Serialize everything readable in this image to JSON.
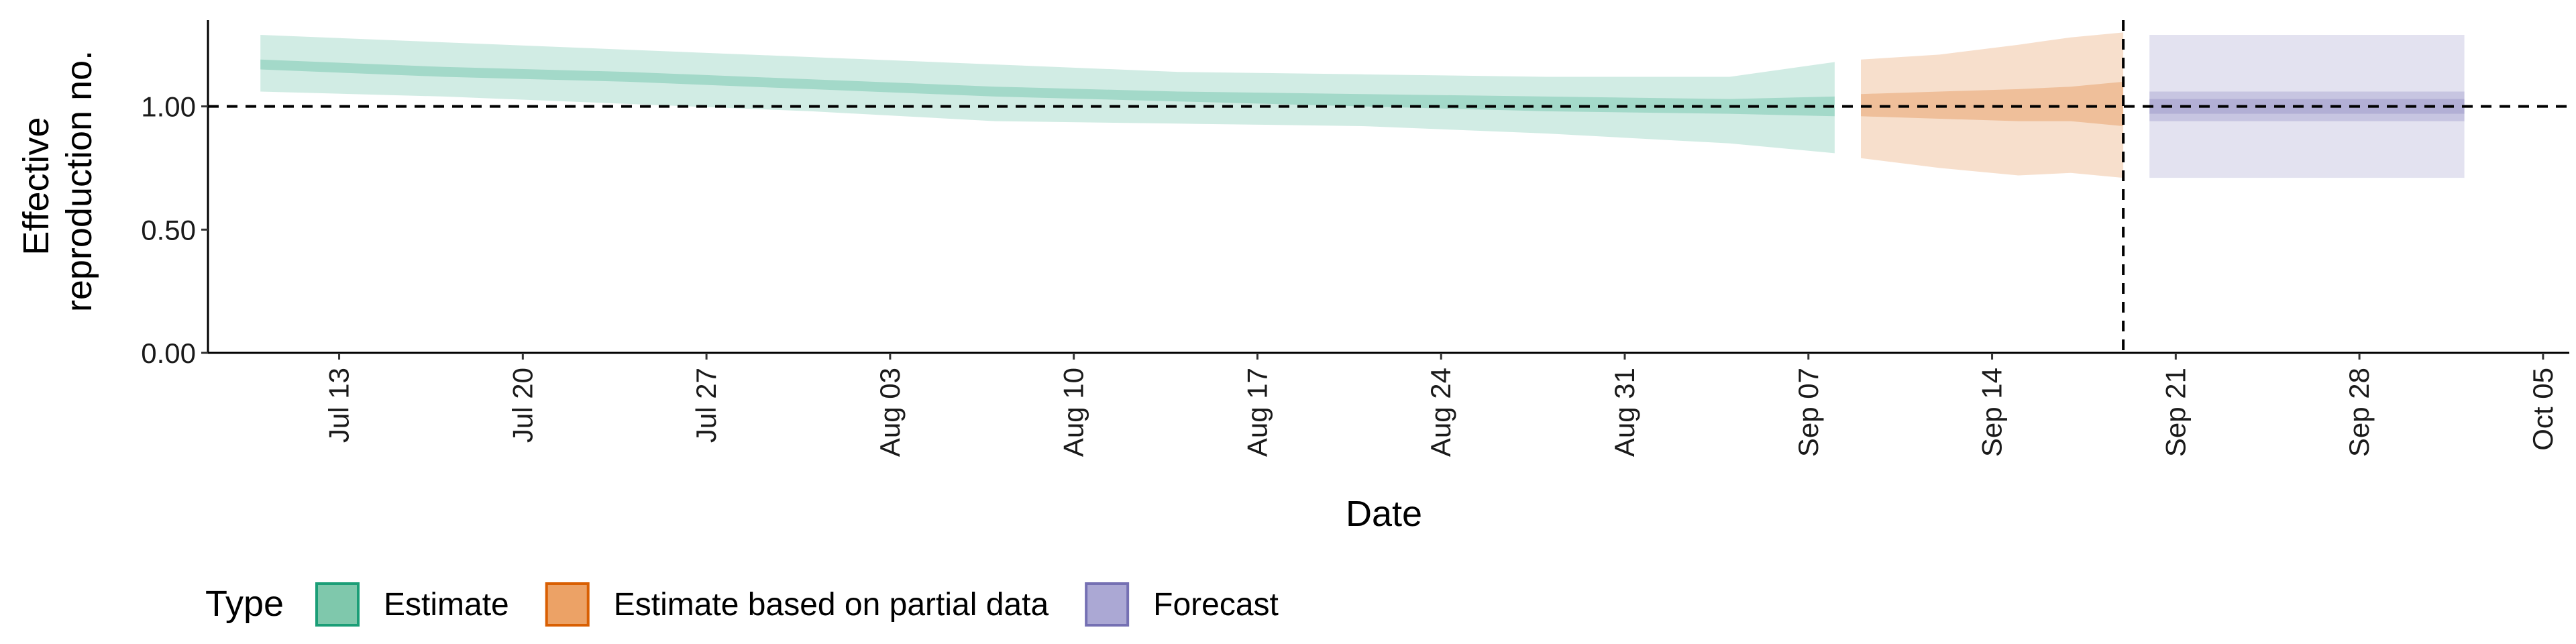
{
  "chart_data": {
    "type": "area",
    "title": "",
    "xlabel": "Date",
    "ylabel_lines": [
      "Effective",
      "reproduction no."
    ],
    "ylim": [
      0,
      1.35
    ],
    "xlim": [
      "2020-07-08",
      "2020-10-06"
    ],
    "y_ticks": [
      0.0,
      0.5,
      1.0
    ],
    "y_tick_labels": [
      "0.00",
      "0.50",
      "1.00"
    ],
    "x_ticks": [
      "2020-07-13",
      "2020-07-20",
      "2020-07-27",
      "2020-08-03",
      "2020-08-10",
      "2020-08-17",
      "2020-08-24",
      "2020-08-31",
      "2020-09-07",
      "2020-09-14",
      "2020-09-21",
      "2020-09-28",
      "2020-10-05"
    ],
    "x_tick_labels": [
      "Jul 13",
      "Jul 20",
      "Jul 27",
      "Aug 03",
      "Aug 10",
      "Aug 17",
      "Aug 24",
      "Aug 31",
      "Sep 07",
      "Sep 14",
      "Sep 21",
      "Sep 28",
      "Oct 05"
    ],
    "reference_hline": 1.0,
    "reference_vline": "2020-09-19",
    "grid": false,
    "legend": {
      "title": "Type",
      "position": "bottom-left",
      "entries": [
        {
          "label": "Estimate",
          "fill": "#7fc8ac",
          "stroke": "#1b9e77"
        },
        {
          "label": "Estimate based on partial data",
          "fill": "#eca266",
          "stroke": "#d95f02"
        },
        {
          "label": "Forecast",
          "fill": "#aba8d4",
          "stroke": "#7570b3"
        }
      ]
    },
    "series": [
      {
        "name": "Estimate",
        "color": "#1b9e77",
        "x": [
          "2020-07-10",
          "2020-07-17",
          "2020-07-24",
          "2020-07-31",
          "2020-08-07",
          "2020-08-14",
          "2020-08-21",
          "2020-08-28",
          "2020-09-04",
          "2020-09-08"
        ],
        "median": [
          1.17,
          1.14,
          1.12,
          1.09,
          1.06,
          1.04,
          1.03,
          1.01,
          1.0,
          1.0
        ],
        "lower_50": [
          1.15,
          1.12,
          1.1,
          1.07,
          1.04,
          1.02,
          1.0,
          0.98,
          0.97,
          0.96
        ],
        "upper_50": [
          1.19,
          1.16,
          1.14,
          1.11,
          1.08,
          1.06,
          1.05,
          1.04,
          1.03,
          1.04
        ],
        "lower_90": [
          1.06,
          1.04,
          1.01,
          0.98,
          0.94,
          0.93,
          0.92,
          0.89,
          0.85,
          0.81
        ],
        "upper_90": [
          1.29,
          1.26,
          1.23,
          1.2,
          1.17,
          1.14,
          1.13,
          1.12,
          1.12,
          1.18
        ]
      },
      {
        "name": "Estimate based on partial data",
        "color": "#d95f02",
        "x": [
          "2020-09-09",
          "2020-09-12",
          "2020-09-15",
          "2020-09-17",
          "2020-09-19"
        ],
        "median": [
          1.0,
          1.0,
          1.0,
          1.0,
          1.01
        ],
        "lower_50": [
          0.96,
          0.95,
          0.94,
          0.94,
          0.92
        ],
        "upper_50": [
          1.05,
          1.06,
          1.07,
          1.08,
          1.1
        ],
        "lower_90": [
          0.79,
          0.75,
          0.72,
          0.73,
          0.71
        ],
        "upper_90": [
          1.19,
          1.21,
          1.25,
          1.28,
          1.3
        ]
      },
      {
        "name": "Forecast",
        "color": "#7570b3",
        "x": [
          "2020-09-20",
          "2020-10-02"
        ],
        "median": [
          1.0,
          1.0
        ],
        "lower_50": [
          0.94,
          0.94
        ],
        "upper_50": [
          1.06,
          1.06
        ],
        "lower_30": [
          0.97,
          0.97
        ],
        "upper_30": [
          1.03,
          1.03
        ],
        "lower_90": [
          0.71,
          0.71
        ],
        "upper_90": [
          1.29,
          1.29
        ]
      }
    ]
  }
}
